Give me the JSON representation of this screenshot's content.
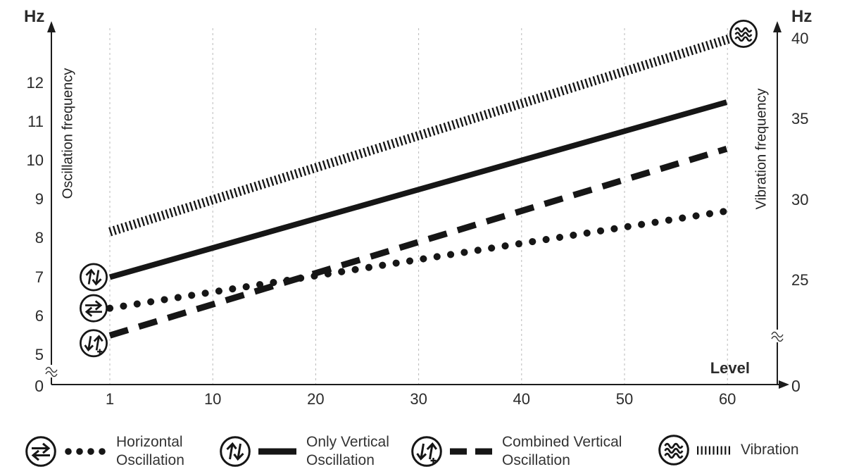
{
  "chart_data": {
    "type": "line",
    "title": "",
    "x_label": "Level",
    "x_ticks": [
      "1",
      "10",
      "20",
      "30",
      "40",
      "50",
      "60"
    ],
    "x_range": [
      1,
      60
    ],
    "grid": "vertical-dashed",
    "legend_position": "bottom",
    "left_axis": {
      "unit": "Hz",
      "label": "Oscillation frequency",
      "ticks": [
        "12",
        "11",
        "10",
        "9",
        "8",
        "7",
        "6",
        "5"
      ],
      "origin": "0",
      "range": [
        5,
        12
      ],
      "axis_break": true
    },
    "right_axis": {
      "unit": "Hz",
      "label": "Vibration frequency",
      "ticks": [
        "40",
        "35",
        "30",
        "25"
      ],
      "origin": "0",
      "range": [
        25,
        40
      ],
      "axis_break": true
    },
    "series": [
      {
        "name": "Horizontal Oscillation",
        "axis": "left",
        "style": "dotted",
        "icon": "horizontal-oscillation",
        "x": [
          1,
          60
        ],
        "values": [
          6.2,
          8.7
        ]
      },
      {
        "name": "Only Vertical Oscillation",
        "axis": "left",
        "style": "solid",
        "icon": "vertical-oscillation",
        "x": [
          1,
          60
        ],
        "values": [
          7.0,
          11.5
        ]
      },
      {
        "name": "Combined Vertical Oscillation",
        "axis": "left",
        "style": "dashed",
        "icon": "combined-vertical-oscillation",
        "x": [
          1,
          60
        ],
        "values": [
          5.5,
          10.3
        ]
      },
      {
        "name": "Vibration",
        "axis": "right",
        "style": "fine-hatch",
        "icon": "vibration",
        "x": [
          1,
          60
        ],
        "values": [
          28,
          40
        ]
      }
    ]
  },
  "labels": {
    "hz_left": "Hz",
    "hz_right": "Hz",
    "zero_left": "0",
    "zero_right": "0",
    "level": "Level",
    "oscillation_axis": "Oscillation frequency",
    "vibration_axis": "Vibration frequency"
  },
  "legend": [
    {
      "label": "Horizontal\nOscillation",
      "style": "dotted",
      "icon": "horizontal-oscillation"
    },
    {
      "label": "Only Vertical\nOscillation",
      "style": "solid",
      "icon": "vertical-oscillation"
    },
    {
      "label": "Combined Vertical\nOscillation",
      "style": "dashed",
      "icon": "combined-vertical-oscillation"
    },
    {
      "label": "Vibration",
      "style": "fine-hatch",
      "icon": "vibration"
    }
  ],
  "colors": {
    "line": "#161616",
    "grid": "#b9b9b9",
    "text": "#2b2b2b",
    "axis": "#1c1c1c",
    "background": "#ffffff"
  }
}
